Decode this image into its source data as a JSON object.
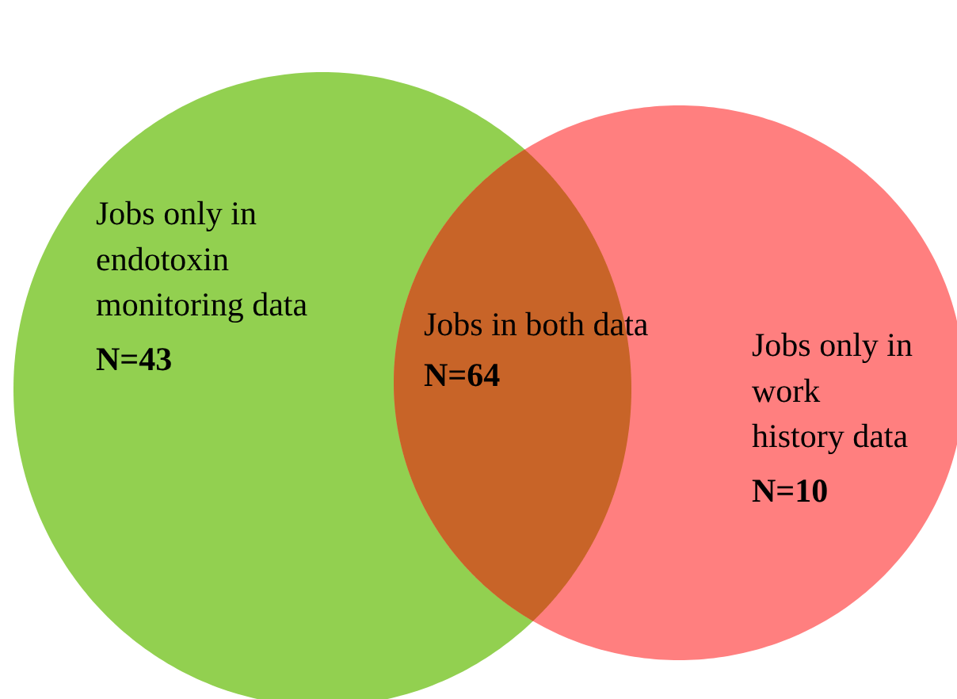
{
  "chart_data": {
    "type": "other",
    "categories": [
      "Jobs only in\nendotoxin\nmonitoring data",
      "Jobs in both data",
      "Jobs only in\nwork\nhistory data"
    ],
    "values": [
      43,
      64,
      10
    ],
    "value_labels": [
      "N=43",
      "N=64",
      "N=10"
    ],
    "colors": [
      "#92d050",
      "#c86428",
      "#ff7f7f"
    ]
  }
}
